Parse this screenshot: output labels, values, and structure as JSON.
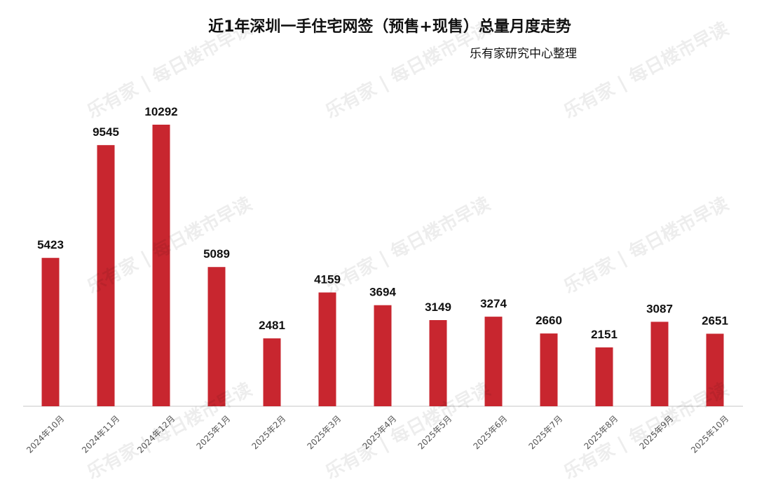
{
  "chart_data": {
    "type": "bar",
    "title": "近1年深圳一手住宅网签（预售+现售）总量月度走势",
    "subtitle": "乐有家研究中心整理",
    "categories": [
      "2024年10月",
      "2024年11月",
      "2024年12月",
      "2025年1月",
      "2025年2月",
      "2025年3月",
      "2025年4月",
      "2025年5月",
      "2025年6月",
      "2025年7月",
      "2025年8月",
      "2025年9月",
      "2025年10月"
    ],
    "values": [
      5423,
      9545,
      10292,
      5089,
      2481,
      4159,
      3694,
      3149,
      3274,
      2660,
      2151,
      3087,
      2651
    ],
    "bar_color": "#c8262f",
    "xlabel": "",
    "ylabel": "",
    "ylim": [
      0,
      10292
    ],
    "grid": false,
    "legend": "none",
    "data_labels": true
  },
  "watermark": {
    "brand": "乐有家",
    "text": "每日楼市早读"
  }
}
